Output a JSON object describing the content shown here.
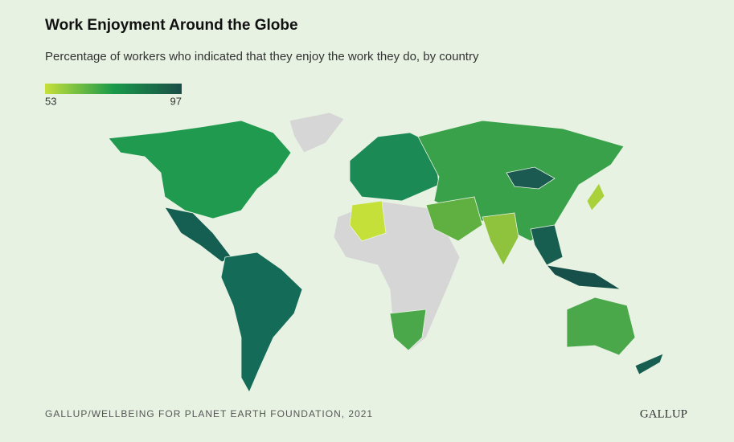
{
  "header": {
    "title": "Work Enjoyment Around the Globe",
    "subtitle": "Percentage of workers who indicated that they enjoy the work they do, by country"
  },
  "legend": {
    "min": 53,
    "max": 97,
    "colors": [
      "#c6e03a",
      "#1a9a4a",
      "#1b4d48"
    ]
  },
  "footer": {
    "source": "GALLUP/WELLBEING FOR PLANET EARTH FOUNDATION, 2021",
    "logo": "GALLUP"
  }
}
